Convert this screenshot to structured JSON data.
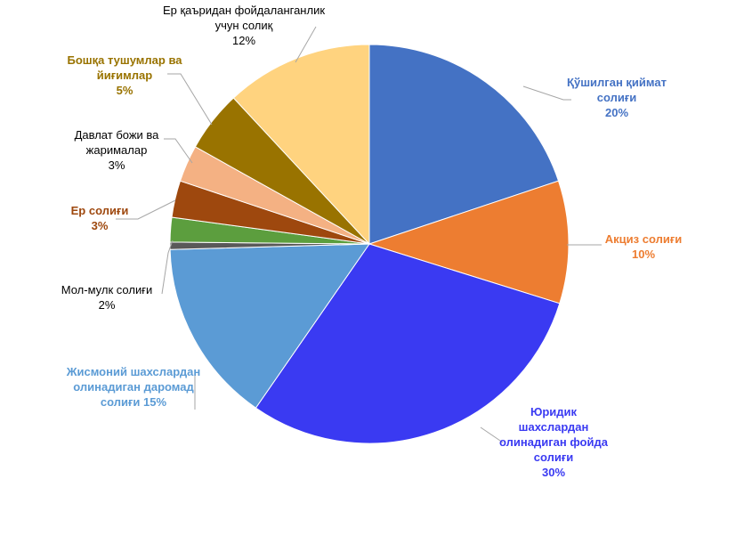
{
  "chart_data": {
    "type": "pie",
    "start_angle_deg": 0,
    "direction": "clockwise",
    "slices": [
      {
        "label": [
          "Қўшилган қиймат",
          "солиғи",
          "20%"
        ],
        "value": 20,
        "color": "#4472c4",
        "label_color": "#4472c4",
        "bold": true,
        "name": "slice-vat"
      },
      {
        "label": [
          "Акциз солиғи",
          "10%"
        ],
        "value": 10,
        "color": "#ed7d31",
        "label_color": "#ed7d31",
        "bold": true,
        "name": "slice-excise"
      },
      {
        "label": [
          "Юридик",
          "шахслардан",
          "олинадиган фойда",
          "солиғи",
          "30%"
        ],
        "value": 30,
        "color": "#3a3af2",
        "label_color": "#3a3af2",
        "bold": true,
        "name": "slice-corporate-profit"
      },
      {
        "label": [
          "Жисмоний шахслардан",
          "олинадиган даромад",
          "солиғи 15%"
        ],
        "value": 15,
        "color": "#5b9bd5",
        "label_color": "#5b9bd5",
        "bold": true,
        "name": "slice-personal-income"
      },
      {
        "label": [],
        "value": 0.6,
        "color": "#595959",
        "label_color": "#000000",
        "bold": false,
        "name": "slice-unlabeled"
      },
      {
        "label": [
          "Мол-мулк солиғи",
          "2%"
        ],
        "value": 2,
        "color": "#5c9e3e",
        "label_color": "#000000",
        "bold": false,
        "name": "slice-property"
      },
      {
        "label": [
          "Ер солиғи",
          "3%"
        ],
        "value": 3,
        "color": "#9e480e",
        "label_color": "#9e480e",
        "bold": true,
        "name": "slice-land"
      },
      {
        "label": [
          "Давлат божи ва",
          "жарималар",
          "3%"
        ],
        "value": 3,
        "color": "#f4b183",
        "label_color": "#000000",
        "bold": false,
        "name": "slice-state-duty"
      },
      {
        "label": [
          "Бошқа тушумлар ва",
          "йиғимлар",
          "5%"
        ],
        "value": 5,
        "color": "#997300",
        "label_color": "#997300",
        "bold": true,
        "name": "slice-other"
      },
      {
        "label": [
          "Ер қаъридан фойдаланганлик",
          "учун солиқ",
          "12%"
        ],
        "value": 12,
        "color": "#ffd37f",
        "label_color": "#000000",
        "bold": false,
        "name": "slice-subsoil"
      }
    ]
  }
}
